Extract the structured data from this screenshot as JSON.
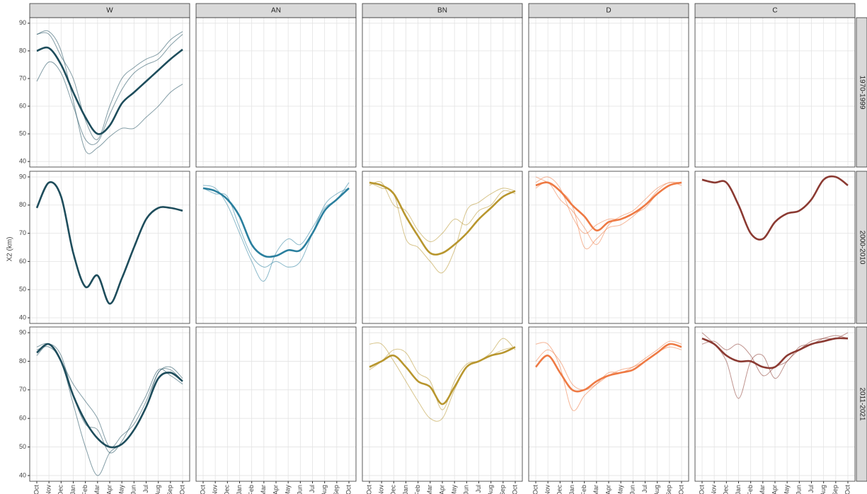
{
  "chart_data": {
    "type": "line",
    "y_label": "X2 (km)",
    "columns": [
      "W",
      "AN",
      "BN",
      "D",
      "C"
    ],
    "rows": [
      "1970-1999",
      "2000-2010",
      "2011-2021"
    ],
    "x": [
      "Oct",
      "Nov",
      "Dec",
      "Jan",
      "Feb",
      "Mar",
      "Apr",
      "May",
      "Jun",
      "Jul",
      "Aug",
      "Sep",
      "Oct"
    ],
    "ylim": [
      38,
      92
    ],
    "yticks": [
      40,
      50,
      60,
      70,
      80,
      90
    ],
    "grid": true,
    "panels": [
      [
        {
          "color": "#1e4d5c",
          "mean": [
            80,
            81,
            75,
            65,
            56,
            50,
            53,
            61,
            65,
            69,
            73,
            77,
            80.5
          ],
          "years": [
            [
              86,
              87,
              80,
              62,
              44,
              45,
              49,
              52,
              52,
              56,
              60,
              65,
              68
            ],
            [
              69,
              76,
              72,
              60,
              48,
              47,
              57,
              66,
              72,
              75,
              77,
              82,
              86
            ],
            [
              86,
              86,
              78,
              70,
              55,
              48,
              60,
              70,
              74,
              77,
              79,
              84,
              87
            ]
          ]
        },
        null,
        null,
        null,
        null
      ],
      [
        {
          "color": "#1e4d5c",
          "mean": [
            79,
            88,
            83,
            63,
            51,
            55,
            45,
            54,
            65,
            75,
            79,
            79,
            78
          ],
          "years": []
        },
        {
          "color": "#2a7f9e",
          "mean": [
            86,
            85,
            82,
            76,
            66,
            62,
            62,
            64,
            64,
            70,
            78,
            82,
            86
          ],
          "years": [
            [
              87,
              86,
              80,
              70,
              60,
              53,
              63,
              68,
              66,
              72,
              79,
              82,
              88
            ],
            [
              86,
              84,
              83,
              72,
              62,
              58,
              60,
              58,
              60,
              70,
              80,
              84,
              86
            ]
          ]
        },
        {
          "color": "#b8962e",
          "mean": [
            88,
            87,
            84,
            76,
            69,
            63,
            63,
            66,
            70,
            75,
            79,
            83,
            85
          ],
          "years": [
            [
              88,
              86,
              84,
              68,
              65,
              60,
              56,
              64,
              78,
              81,
              84,
              86,
              85
            ],
            [
              87,
              88,
              80,
              78,
              71,
              67,
              70,
              75,
              73,
              78,
              80,
              85,
              84
            ]
          ]
        },
        {
          "color": "#ee7a44",
          "mean": [
            87,
            88,
            85,
            80,
            76,
            71,
            74,
            75,
            77,
            80,
            84,
            87,
            88
          ],
          "years": [
            [
              90,
              88,
              85,
              80,
              65,
              68,
              72,
              73,
              76,
              80,
              85,
              88,
              87
            ],
            [
              86,
              88,
              82,
              78,
              72,
              66,
              73,
              76,
              78,
              82,
              86,
              88,
              88
            ],
            [
              88,
              90,
              86,
              76,
              70,
              73,
              75,
              75,
              77,
              79,
              84,
              87,
              88
            ]
          ]
        },
        {
          "color": "#8b3a32",
          "mean": [
            89,
            88,
            88,
            80,
            70,
            68,
            74,
            77,
            78,
            82,
            89,
            90,
            87
          ],
          "years": []
        }
      ],
      [
        {
          "color": "#1e4d5c",
          "mean": [
            83,
            86,
            80,
            68,
            59,
            53,
            50,
            51,
            56,
            64,
            74,
            76,
            73
          ],
          "years": [
            [
              84,
              85,
              80,
              65,
              50,
              40,
              48,
              51,
              56,
              64,
              76,
              77,
              73
            ],
            [
              82,
              86,
              82,
              68,
              58,
              56,
              48,
              52,
              60,
              68,
              77,
              75,
              72
            ],
            [
              85,
              86,
              80,
              72,
              66,
              60,
              50,
              54,
              58,
              66,
              76,
              78,
              74
            ]
          ]
        },
        null,
        {
          "color": "#b8962e",
          "mean": [
            78,
            80,
            82,
            78,
            73,
            71,
            65,
            71,
            78,
            80,
            82,
            83,
            85
          ],
          "years": [
            [
              86,
              86,
              80,
              73,
              66,
              60,
              60,
              70,
              78,
              80,
              83,
              88,
              84
            ],
            [
              77,
              80,
              84,
              83,
              76,
              73,
              63,
              73,
              79,
              80,
              82,
              84,
              85
            ]
          ]
        },
        {
          "color": "#ee7a44",
          "mean": [
            78,
            82,
            76,
            70,
            70,
            73,
            75,
            76,
            77,
            80,
            83,
            86,
            85
          ],
          "years": [
            [
              86,
              86,
              78,
              63,
              68,
              72,
              76,
              76,
              78,
              81,
              84,
              87,
              86
            ],
            [
              80,
              84,
              80,
              72,
              70,
              72,
              75,
              77,
              78,
              80,
              83,
              85,
              84
            ]
          ]
        },
        {
          "color": "#8b3a32",
          "mean": [
            88,
            86,
            82,
            80,
            80,
            78,
            78,
            82,
            84,
            86,
            87,
            88,
            88
          ],
          "years": [
            [
              90,
              86,
              80,
              67,
              80,
              82,
              74,
              80,
              84,
              87,
              88,
              88,
              90
            ],
            [
              86,
              87,
              84,
              86,
              82,
              75,
              78,
              80,
              85,
              86,
              88,
              89,
              88
            ]
          ]
        }
      ]
    ]
  }
}
